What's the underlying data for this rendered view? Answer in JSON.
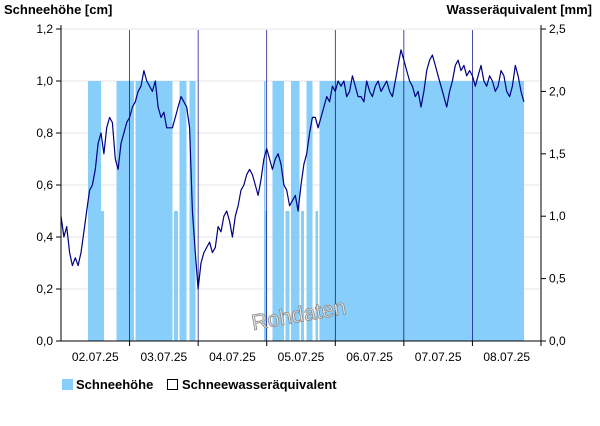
{
  "chart_data": {
    "type": "bar+line",
    "ylabel_left": "Schneehöhe [cm]",
    "ylabel_right": "Wasseräquivalent [mm]",
    "ylim_left": [
      0,
      1.2
    ],
    "ylim_right": [
      0,
      2.5
    ],
    "y_ticks_left": [
      "0,0",
      "0,2",
      "0,4",
      "0,6",
      "0,8",
      "1,0",
      "1,2"
    ],
    "y_ticks_right": [
      "0,0",
      "0,5",
      "1,0",
      "1,5",
      "2,0",
      "2,5"
    ],
    "x_ticks": [
      "02.07.25",
      "03.07.25",
      "04.07.25",
      "05.07.25",
      "06.07.25",
      "07.07.25",
      "08.07.25"
    ],
    "x_range_hours": [
      0,
      168
    ],
    "grid": true,
    "legend_position": "bottom-left",
    "watermark": "Rohdaten",
    "colors": {
      "bars": "#87cefa",
      "line": "#000080",
      "grid": "#e6e6e6",
      "axis": "#000000"
    },
    "series": [
      {
        "name": "Schneehöhe",
        "kind": "bar",
        "axis": "left",
        "hour_step": 0.5,
        "segments": [
          {
            "from": 9.5,
            "to": 14,
            "value": 1.0
          },
          {
            "from": 14,
            "to": 15,
            "value": 0.5
          },
          {
            "from": 19.5,
            "to": 25.5,
            "value": 1.0
          },
          {
            "from": 26,
            "to": 39,
            "value": 1.0
          },
          {
            "from": 39.5,
            "to": 41,
            "value": 0.5
          },
          {
            "from": 41.5,
            "to": 44,
            "value": 1.0
          },
          {
            "from": 45,
            "to": 47,
            "value": 1.0
          },
          {
            "from": 71,
            "to": 71.5,
            "value": 1.0
          },
          {
            "from": 71.5,
            "to": 72,
            "value": 0.5
          },
          {
            "from": 74,
            "to": 78,
            "value": 1.0
          },
          {
            "from": 78.5,
            "to": 80,
            "value": 0.5
          },
          {
            "from": 80.5,
            "to": 83.5,
            "value": 1.0
          },
          {
            "from": 84,
            "to": 85,
            "value": 0.5
          },
          {
            "from": 86,
            "to": 88,
            "value": 1.0
          },
          {
            "from": 89,
            "to": 90,
            "value": 0.5
          },
          {
            "from": 90.5,
            "to": 162,
            "value": 1.0
          }
        ]
      },
      {
        "name": "Schneewasseräquivalent",
        "kind": "line",
        "axis": "left",
        "points": [
          [
            0,
            0.48
          ],
          [
            1,
            0.4
          ],
          [
            2,
            0.44
          ],
          [
            3,
            0.34
          ],
          [
            4,
            0.29
          ],
          [
            5,
            0.32
          ],
          [
            6,
            0.29
          ],
          [
            7,
            0.34
          ],
          [
            8,
            0.42
          ],
          [
            9,
            0.5
          ],
          [
            10,
            0.58
          ],
          [
            11,
            0.6
          ],
          [
            12,
            0.66
          ],
          [
            13,
            0.76
          ],
          [
            14,
            0.8
          ],
          [
            15,
            0.72
          ],
          [
            16,
            0.82
          ],
          [
            17,
            0.86
          ],
          [
            18,
            0.84
          ],
          [
            19,
            0.7
          ],
          [
            20,
            0.66
          ],
          [
            21,
            0.76
          ],
          [
            22,
            0.8
          ],
          [
            23,
            0.84
          ],
          [
            24,
            0.86
          ],
          [
            25,
            0.9
          ],
          [
            26,
            0.92
          ],
          [
            27,
            0.96
          ],
          [
            28,
            0.98
          ],
          [
            29,
            1.04
          ],
          [
            30,
            1.0
          ],
          [
            31,
            0.98
          ],
          [
            32,
            0.96
          ],
          [
            33,
            1.0
          ],
          [
            34,
            0.9
          ],
          [
            35,
            0.86
          ],
          [
            36,
            0.88
          ],
          [
            37,
            0.82
          ],
          [
            38,
            0.82
          ],
          [
            39,
            0.82
          ],
          [
            40,
            0.86
          ],
          [
            41,
            0.9
          ],
          [
            42,
            0.94
          ],
          [
            43,
            0.92
          ],
          [
            44,
            0.9
          ],
          [
            45,
            0.82
          ],
          [
            46,
            0.5
          ],
          [
            47,
            0.34
          ],
          [
            48,
            0.2
          ],
          [
            49,
            0.3
          ],
          [
            50,
            0.34
          ],
          [
            51,
            0.36
          ],
          [
            52,
            0.38
          ],
          [
            53,
            0.34
          ],
          [
            54,
            0.36
          ],
          [
            55,
            0.44
          ],
          [
            56,
            0.42
          ],
          [
            57,
            0.48
          ],
          [
            58,
            0.5
          ],
          [
            59,
            0.46
          ],
          [
            60,
            0.4
          ],
          [
            61,
            0.48
          ],
          [
            62,
            0.52
          ],
          [
            63,
            0.58
          ],
          [
            64,
            0.6
          ],
          [
            65,
            0.64
          ],
          [
            66,
            0.66
          ],
          [
            67,
            0.64
          ],
          [
            68,
            0.6
          ],
          [
            69,
            0.56
          ],
          [
            70,
            0.62
          ],
          [
            71,
            0.7
          ],
          [
            72,
            0.74
          ],
          [
            73,
            0.7
          ],
          [
            74,
            0.66
          ],
          [
            75,
            0.7
          ],
          [
            76,
            0.72
          ],
          [
            77,
            0.68
          ],
          [
            78,
            0.6
          ],
          [
            79,
            0.58
          ],
          [
            80,
            0.52
          ],
          [
            81,
            0.54
          ],
          [
            82,
            0.56
          ],
          [
            83,
            0.5
          ],
          [
            84,
            0.6
          ],
          [
            85,
            0.68
          ],
          [
            86,
            0.72
          ],
          [
            87,
            0.8
          ],
          [
            88,
            0.86
          ],
          [
            89,
            0.86
          ],
          [
            90,
            0.82
          ],
          [
            91,
            0.86
          ],
          [
            92,
            0.9
          ],
          [
            93,
            0.94
          ],
          [
            94,
            0.92
          ],
          [
            95,
            0.98
          ],
          [
            96,
            0.96
          ],
          [
            97,
            1.0
          ],
          [
            98,
            0.98
          ],
          [
            99,
            1.0
          ],
          [
            100,
            0.94
          ],
          [
            101,
            0.96
          ],
          [
            102,
            1.02
          ],
          [
            103,
            0.98
          ],
          [
            104,
            0.94
          ],
          [
            105,
            0.94
          ],
          [
            106,
            0.92
          ],
          [
            107,
            1.0
          ],
          [
            108,
            0.96
          ],
          [
            109,
            0.94
          ],
          [
            110,
            0.98
          ],
          [
            111,
            1.0
          ],
          [
            112,
            0.96
          ],
          [
            113,
            0.98
          ],
          [
            114,
            1.0
          ],
          [
            115,
            0.96
          ],
          [
            116,
            0.94
          ],
          [
            117,
            1.0
          ],
          [
            118,
            1.06
          ],
          [
            119,
            1.12
          ],
          [
            120,
            1.08
          ],
          [
            121,
            1.04
          ],
          [
            122,
            1.0
          ],
          [
            123,
            0.98
          ],
          [
            124,
            0.94
          ],
          [
            125,
            0.96
          ],
          [
            126,
            0.9
          ],
          [
            127,
            0.96
          ],
          [
            128,
            1.04
          ],
          [
            129,
            1.08
          ],
          [
            130,
            1.1
          ],
          [
            131,
            1.06
          ],
          [
            132,
            1.02
          ],
          [
            133,
            0.98
          ],
          [
            134,
            0.94
          ],
          [
            135,
            0.9
          ],
          [
            136,
            0.96
          ],
          [
            137,
            1.0
          ],
          [
            138,
            1.06
          ],
          [
            139,
            1.08
          ],
          [
            140,
            1.04
          ],
          [
            141,
            1.06
          ],
          [
            142,
            1.02
          ],
          [
            143,
            1.04
          ],
          [
            144,
            1.02
          ],
          [
            145,
            0.98
          ],
          [
            146,
            1.02
          ],
          [
            147,
            1.06
          ],
          [
            148,
            1.0
          ],
          [
            149,
            0.98
          ],
          [
            150,
            1.02
          ],
          [
            151,
            1.0
          ],
          [
            152,
            0.96
          ],
          [
            153,
            0.98
          ],
          [
            154,
            1.04
          ],
          [
            155,
            1.02
          ],
          [
            156,
            0.96
          ],
          [
            157,
            0.94
          ],
          [
            158,
            0.98
          ],
          [
            159,
            1.06
          ],
          [
            160,
            1.02
          ],
          [
            161,
            0.96
          ],
          [
            162,
            0.92
          ]
        ]
      }
    ]
  }
}
